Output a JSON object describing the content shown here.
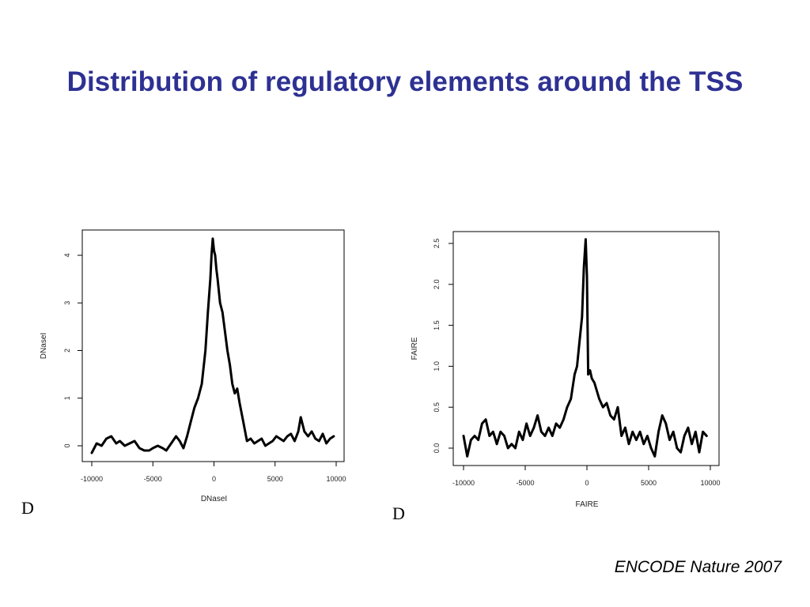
{
  "slide": {
    "title": "Distribution of regulatory elements around the TSS",
    "citation": "ENCODE Nature 2007",
    "title_color": "#2e3192"
  },
  "chart_data": [
    {
      "type": "line",
      "panel_label": "D",
      "xlabel": "DNaseI",
      "ylabel": "DNaseI",
      "xlim": [
        -10000,
        10000
      ],
      "ylim": [
        -0.3,
        4.5
      ],
      "x_ticks": [
        -10000,
        -5000,
        0,
        5000,
        10000
      ],
      "y_ticks": [
        0,
        1,
        2,
        3,
        4
      ],
      "grid": false,
      "series": [
        {
          "x": [
            -10000,
            -9600,
            -9200,
            -8800,
            -8400,
            -8000,
            -7700,
            -7300,
            -6900,
            -6500,
            -6100,
            -5700,
            -5300,
            -5000,
            -4600,
            -4200,
            -3900,
            -3500,
            -3100,
            -2800,
            -2500,
            -2200,
            -1900,
            -1600,
            -1300,
            -1000,
            -700,
            -500,
            -300,
            -200,
            -100,
            0,
            100,
            200,
            300,
            500,
            700,
            900,
            1100,
            1300,
            1500,
            1700,
            1900,
            2100,
            2400,
            2700,
            3000,
            3300,
            3600,
            3900,
            4200,
            4500,
            4800,
            5100,
            5400,
            5700,
            6000,
            6300,
            6600,
            6900,
            7100,
            7400,
            7700,
            8000,
            8300,
            8600,
            8900,
            9200,
            9500,
            9800
          ],
          "values": [
            -0.15,
            0.05,
            0.0,
            0.15,
            0.2,
            0.05,
            0.1,
            0.0,
            0.05,
            0.1,
            -0.05,
            -0.1,
            -0.1,
            -0.05,
            0.0,
            -0.05,
            -0.1,
            0.05,
            0.2,
            0.1,
            -0.05,
            0.2,
            0.5,
            0.8,
            1.0,
            1.3,
            2.0,
            2.8,
            3.5,
            4.0,
            4.35,
            4.1,
            4.0,
            3.7,
            3.5,
            3.0,
            2.8,
            2.4,
            2.0,
            1.7,
            1.3,
            1.1,
            1.2,
            0.9,
            0.5,
            0.1,
            0.15,
            0.05,
            0.1,
            0.15,
            0.0,
            0.05,
            0.1,
            0.2,
            0.15,
            0.1,
            0.2,
            0.25,
            0.1,
            0.3,
            0.6,
            0.3,
            0.2,
            0.3,
            0.15,
            0.1,
            0.25,
            0.05,
            0.15,
            0.2
          ]
        }
      ]
    },
    {
      "type": "line",
      "panel_label": "D",
      "xlabel": "FAIRE",
      "ylabel": "FAIRE",
      "xlim": [
        -10000,
        10000
      ],
      "ylim": [
        -0.2,
        2.6
      ],
      "x_ticks": [
        -10000,
        -5000,
        0,
        5000,
        10000
      ],
      "y_ticks": [
        0.0,
        0.5,
        1.0,
        1.5,
        2.0,
        2.5
      ],
      "y_tick_labels": [
        "0.0",
        "0.5",
        "1.0",
        "1.5",
        "2.0",
        "2.5"
      ],
      "grid": false,
      "series": [
        {
          "x": [
            -10000,
            -9700,
            -9400,
            -9100,
            -8800,
            -8500,
            -8200,
            -7900,
            -7600,
            -7300,
            -7000,
            -6700,
            -6400,
            -6100,
            -5800,
            -5500,
            -5200,
            -4900,
            -4600,
            -4300,
            -4000,
            -3700,
            -3400,
            -3100,
            -2800,
            -2500,
            -2200,
            -1900,
            -1600,
            -1300,
            -1000,
            -800,
            -600,
            -400,
            -250,
            -100,
            0,
            100,
            250,
            400,
            600,
            800,
            1000,
            1300,
            1600,
            1900,
            2200,
            2500,
            2800,
            3100,
            3400,
            3700,
            4000,
            4300,
            4600,
            4900,
            5200,
            5500,
            5800,
            6100,
            6400,
            6700,
            7000,
            7300,
            7600,
            7900,
            8200,
            8500,
            8800,
            9100,
            9400,
            9700
          ],
          "values": [
            0.15,
            -0.1,
            0.1,
            0.15,
            0.1,
            0.3,
            0.35,
            0.15,
            0.2,
            0.05,
            0.2,
            0.15,
            0.0,
            0.05,
            0.0,
            0.2,
            0.1,
            0.3,
            0.15,
            0.25,
            0.4,
            0.2,
            0.15,
            0.25,
            0.15,
            0.3,
            0.25,
            0.35,
            0.5,
            0.6,
            0.9,
            1.0,
            1.3,
            1.6,
            2.2,
            2.55,
            2.1,
            0.9,
            0.95,
            0.85,
            0.8,
            0.7,
            0.6,
            0.5,
            0.55,
            0.4,
            0.35,
            0.5,
            0.15,
            0.25,
            0.05,
            0.2,
            0.1,
            0.2,
            0.05,
            0.15,
            0.0,
            -0.1,
            0.2,
            0.4,
            0.3,
            0.1,
            0.2,
            0.0,
            -0.05,
            0.15,
            0.25,
            0.05,
            0.2,
            -0.05,
            0.2,
            0.15
          ]
        }
      ]
    }
  ]
}
